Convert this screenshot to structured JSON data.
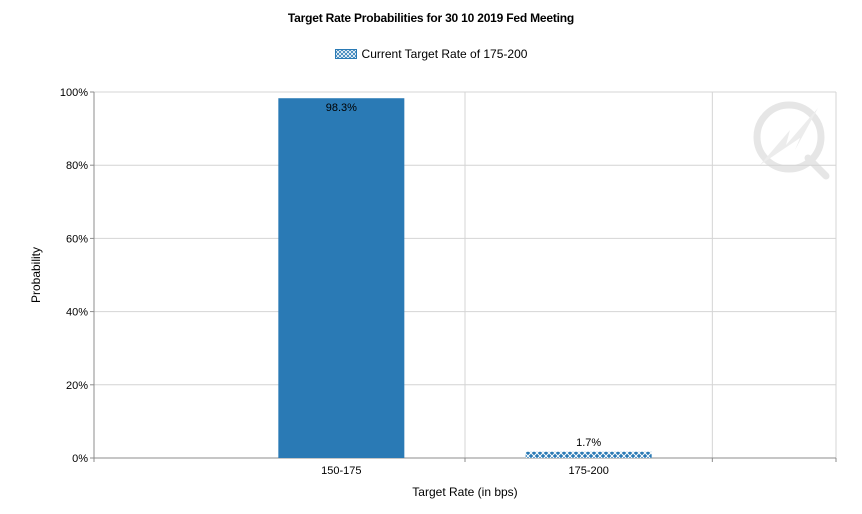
{
  "chart_data": {
    "type": "bar",
    "title": "Target Rate Probabilities for 30 10 2019 Fed Meeting",
    "xlabel": "Target Rate (in bps)",
    "ylabel": "Probability",
    "categories": [
      "150-175",
      "175-200"
    ],
    "values": [
      98.3,
      1.7
    ],
    "data_labels": [
      "98.3%",
      "1.7%"
    ],
    "ylim": [
      0,
      100
    ],
    "yticks": [
      0,
      20,
      40,
      60,
      80,
      100
    ],
    "ytick_labels": [
      "0%",
      "20%",
      "40%",
      "60%",
      "80%",
      "100%"
    ],
    "grid": true,
    "legend": {
      "position": "top-center",
      "entries": [
        {
          "name": "Current Target Rate of 175-200",
          "pattern": "crosshatch"
        }
      ]
    },
    "colors": {
      "bar": "#2a7ab5",
      "pattern_fg": "#2a7ab5",
      "pattern_bg": "#ffffff",
      "grid": "#d4d4d4",
      "axis": "#8c8c8c"
    },
    "highlight_category": "175-200"
  }
}
